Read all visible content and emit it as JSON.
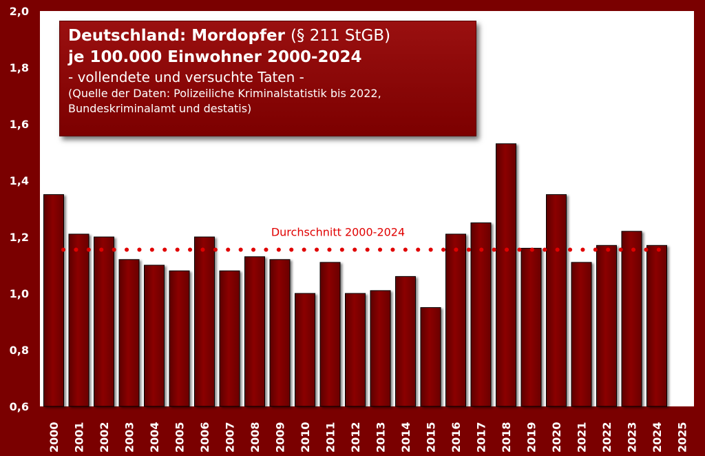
{
  "title": {
    "line1_bold": "Deutschland: Mordopfer",
    "line1_normal": "(§ 211 StGB)",
    "line2": "je 100.000 Einwohner 2000-2024",
    "subtitle": "- vollendete und versuchte Taten -",
    "source_line1": "(Quelle der Daten: Polizeiliche Kriminalstatistik bis 2022,",
    "source_line2": "Bundeskriminalamt und destatis)"
  },
  "colors": {
    "background": "#7a0000",
    "plot": "#ffffff",
    "bar_fill": "#8b0000",
    "average_line": "#e00000"
  },
  "chart_data": {
    "type": "bar",
    "categories": [
      "2000",
      "2001",
      "2002",
      "2003",
      "2004",
      "2005",
      "2006",
      "2007",
      "2008",
      "2009",
      "2010",
      "2011",
      "2012",
      "2013",
      "2014",
      "2015",
      "2016",
      "2017",
      "2018",
      "2019",
      "2020",
      "2021",
      "2022",
      "2023",
      "2024",
      "2025"
    ],
    "values": [
      1.35,
      1.21,
      1.2,
      1.12,
      1.1,
      1.08,
      1.2,
      1.08,
      1.13,
      1.12,
      1.0,
      1.11,
      1.0,
      1.01,
      1.06,
      0.95,
      1.21,
      1.25,
      1.53,
      1.16,
      1.35,
      1.11,
      1.17,
      1.22,
      1.17,
      null
    ],
    "ylim": [
      0.6,
      2.0
    ],
    "yticks": [
      0.6,
      0.8,
      1.0,
      1.2,
      1.4,
      1.6,
      1.8,
      2.0
    ],
    "ytick_labels": [
      "0,6",
      "0,8",
      "1,0",
      "1,2",
      "1,4",
      "1,6",
      "1,8",
      "2,0"
    ],
    "average": {
      "label": "Durchschnitt 2000-2024",
      "value": 1.155
    },
    "xlabel": "",
    "ylabel": "",
    "grid": false
  }
}
